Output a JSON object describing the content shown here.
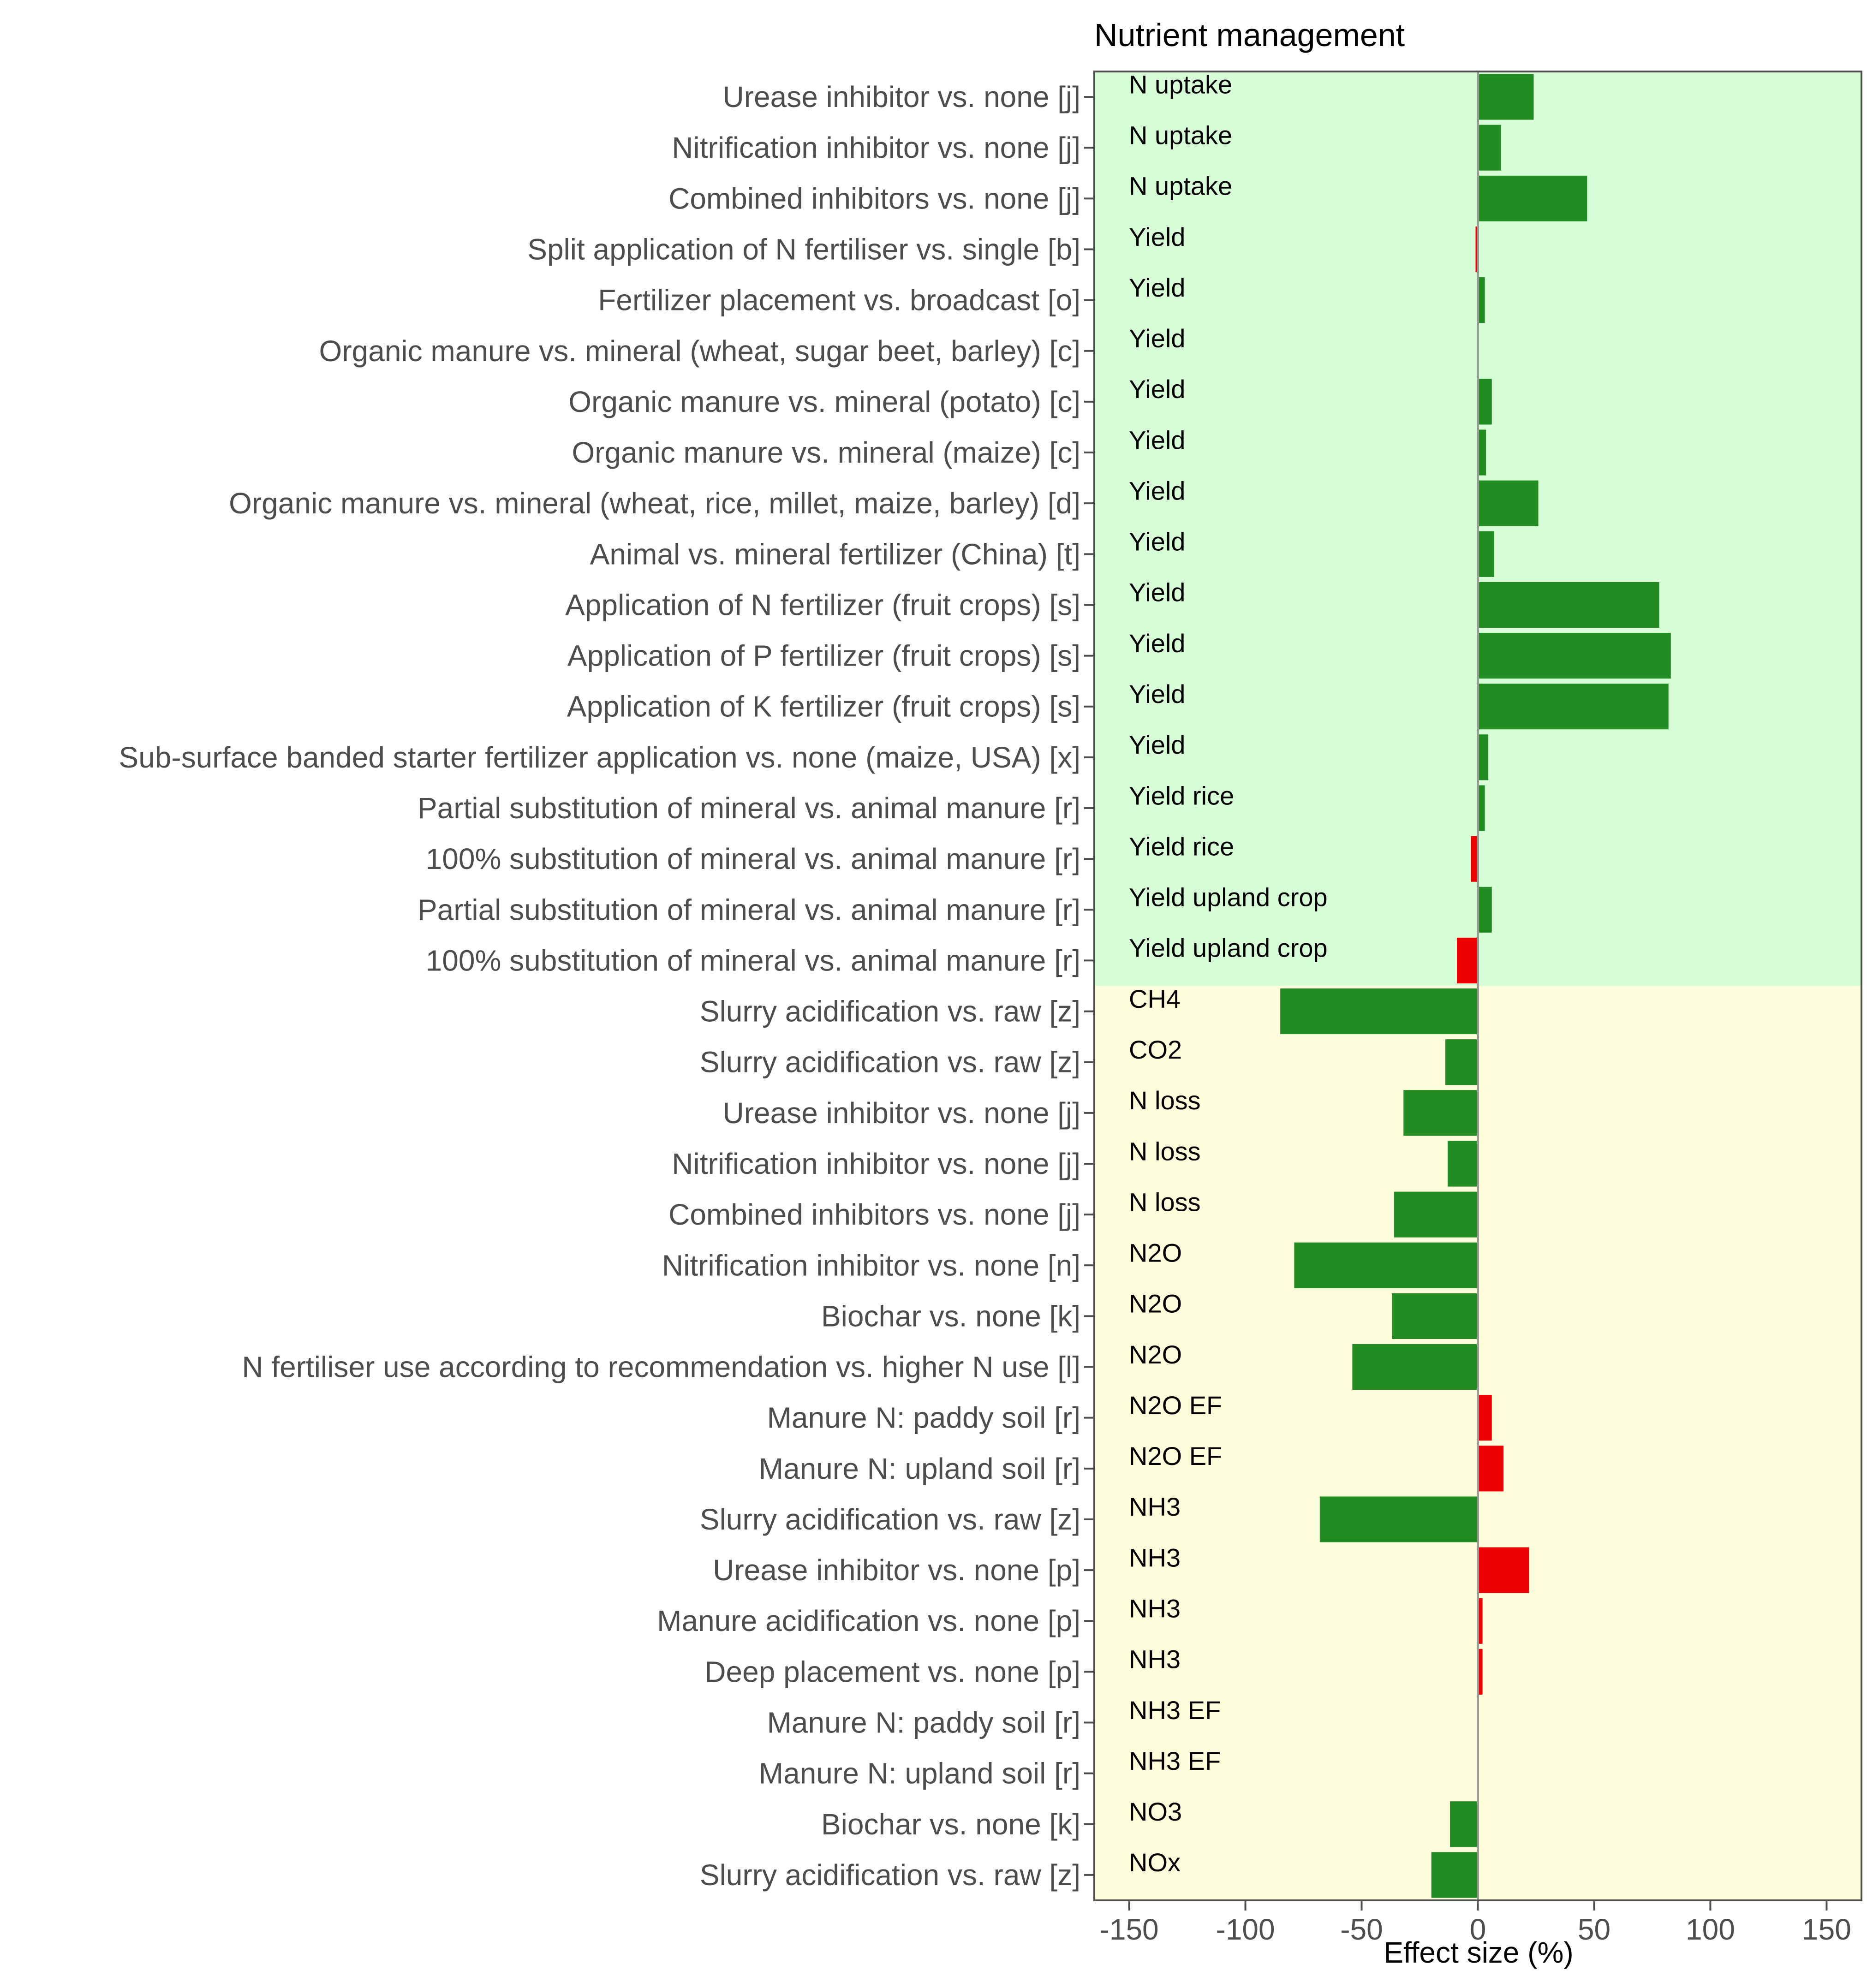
{
  "chart_data": {
    "type": "bar",
    "orientation": "horizontal",
    "title": "Nutrient management",
    "xlabel": "Effect size (%)",
    "ylabel": "",
    "xlim": [
      -165,
      165
    ],
    "xticks": [
      -150,
      -100,
      -50,
      0,
      50,
      100,
      150
    ],
    "xtick_labels": [
      "-150",
      "-100",
      "-50",
      "0",
      "50",
      "100",
      "150"
    ],
    "colors": {
      "positive_effect": "#228B22",
      "negative_effect": "#EE0000",
      "productivity_panel": "#D8FED8",
      "environment_panel": "#FEFEDC",
      "zero_line": "#999999",
      "grid_frame": "#4d4d4d"
    },
    "panels": [
      {
        "name": "productivity",
        "rows": 18
      },
      {
        "name": "environment",
        "rows": 18
      }
    ],
    "rows": [
      {
        "label": "Urease inhibitor vs. none [j]",
        "indicator": "N uptake",
        "value": 24,
        "effect": "positive"
      },
      {
        "label": "Nitrification inhibitor vs. none [j]",
        "indicator": "N uptake",
        "value": 10,
        "effect": "positive"
      },
      {
        "label": "Combined inhibitors vs. none [j]",
        "indicator": "N uptake",
        "value": 47,
        "effect": "positive"
      },
      {
        "label": "Split application of N fertiliser vs. single [b]",
        "indicator": "Yield",
        "value": -1,
        "effect": "negative"
      },
      {
        "label": "Fertilizer placement vs. broadcast [o]",
        "indicator": "Yield",
        "value": 3,
        "effect": "positive"
      },
      {
        "label": "Organic manure vs. mineral (wheat, sugar beet, barley) [c]",
        "indicator": "Yield",
        "value": 0,
        "effect": "positive"
      },
      {
        "label": "Organic manure vs. mineral (potato) [c]",
        "indicator": "Yield",
        "value": 6,
        "effect": "positive"
      },
      {
        "label": "Organic manure vs. mineral (maize) [c]",
        "indicator": "Yield",
        "value": 3.5,
        "effect": "positive"
      },
      {
        "label": "Organic manure vs. mineral (wheat, rice, millet, maize, barley) [d]",
        "indicator": "Yield",
        "value": 26,
        "effect": "positive"
      },
      {
        "label": "Animal vs. mineral fertilizer (China) [t]",
        "indicator": "Yield",
        "value": 7,
        "effect": "positive"
      },
      {
        "label": "Application of N fertilizer (fruit crops) [s]",
        "indicator": "Yield",
        "value": 78,
        "effect": "positive"
      },
      {
        "label": "Application of P fertilizer (fruit crops) [s]",
        "indicator": "Yield",
        "value": 83,
        "effect": "positive"
      },
      {
        "label": "Application of K fertilizer (fruit crops) [s]",
        "indicator": "Yield",
        "value": 82,
        "effect": "positive"
      },
      {
        "label": "Sub-surface banded starter fertilizer application vs. none (maize, USA) [x]",
        "indicator": "Yield",
        "value": 4.5,
        "effect": "positive"
      },
      {
        "label": "Partial substitution of mineral vs. animal manure [r]",
        "indicator": "Yield rice",
        "value": 3,
        "effect": "positive"
      },
      {
        "label": "100% substitution of mineral vs. animal manure [r]",
        "indicator": "Yield rice",
        "value": -3,
        "effect": "negative"
      },
      {
        "label": "Partial substitution of mineral vs. animal manure [r]",
        "indicator": "Yield upland crop",
        "value": 6,
        "effect": "positive"
      },
      {
        "label": "100% substitution of mineral vs. animal manure [r]",
        "indicator": "Yield upland crop",
        "value": -9,
        "effect": "negative"
      },
      {
        "label": "Slurry acidification vs. raw [z]",
        "indicator": "CH4",
        "value": -85,
        "effect": "positive"
      },
      {
        "label": "Slurry acidification vs. raw [z]",
        "indicator": "CO2",
        "value": -14,
        "effect": "positive"
      },
      {
        "label": "Urease inhibitor vs. none [j]",
        "indicator": "N loss",
        "value": -32,
        "effect": "positive"
      },
      {
        "label": "Nitrification inhibitor vs. none [j]",
        "indicator": "N loss",
        "value": -13,
        "effect": "positive"
      },
      {
        "label": "Combined inhibitors vs. none [j]",
        "indicator": "N loss",
        "value": -36,
        "effect": "positive"
      },
      {
        "label": "Nitrification inhibitor vs. none [n]",
        "indicator": "N2O",
        "value": -79,
        "effect": "positive"
      },
      {
        "label": "Biochar vs. none [k]",
        "indicator": "N2O",
        "value": -37,
        "effect": "positive"
      },
      {
        "label": "N fertiliser use according to recommendation vs. higher N use [l]",
        "indicator": "N2O",
        "value": -54,
        "effect": "positive"
      },
      {
        "label": "Manure N: paddy soil [r]",
        "indicator": "N2O EF",
        "value": 6,
        "effect": "negative"
      },
      {
        "label": "Manure N: upland soil [r]",
        "indicator": "N2O EF",
        "value": 11,
        "effect": "negative"
      },
      {
        "label": "Slurry acidification vs. raw [z]",
        "indicator": "NH3",
        "value": -68,
        "effect": "positive"
      },
      {
        "label": "Urease inhibitor vs. none [p]",
        "indicator": "NH3",
        "value": 22,
        "effect": "negative"
      },
      {
        "label": "Manure acidification vs. none [p]",
        "indicator": "NH3",
        "value": 2,
        "effect": "negative"
      },
      {
        "label": "Deep placement vs. none [p]",
        "indicator": "NH3",
        "value": 2,
        "effect": "negative"
      },
      {
        "label": "Manure N: paddy soil [r]",
        "indicator": "NH3 EF",
        "value": 0,
        "effect": "positive"
      },
      {
        "label": "Manure N: upland soil [r]",
        "indicator": "NH3 EF",
        "value": 0,
        "effect": "positive"
      },
      {
        "label": "Biochar vs. none [k]",
        "indicator": "NO3",
        "value": -12,
        "effect": "positive"
      },
      {
        "label": "Slurry acidification vs. raw [z]",
        "indicator": "NOx",
        "value": -20,
        "effect": "positive"
      }
    ]
  }
}
